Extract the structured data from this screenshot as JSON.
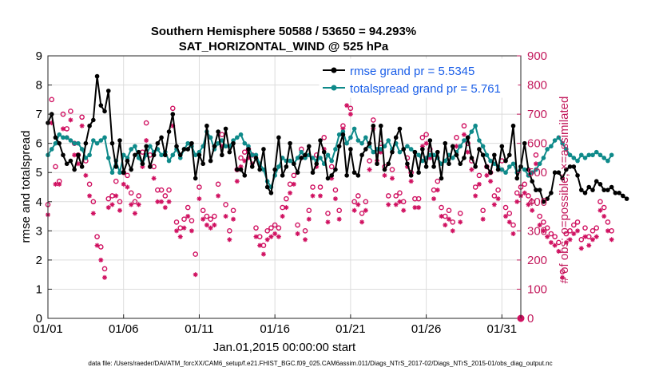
{
  "chart_data": {
    "type": "line",
    "title": "Southern Hemisphere 50588 / 53650 = 94.293%",
    "subtitle": "SAT_HORIZONTAL_WIND @ 525 hPa",
    "xlabel": "Jan.01,2015 00:00:00 start",
    "ylabel": "rmse and totalspread",
    "ylabel_right": "# of obs: o=possible; ×=assimilated",
    "footer": "data file: /Users/raeder/DAI/ATM_forcXX/CAM6_setup/f.e21.FHIST_BGC.f09_025.CAM6assim.011/Diags_NTrS_2017-02/Diags_NTrS_2015-01/obs_diag_output.nc",
    "x_ticks": [
      "01/01",
      "01/06",
      "01/11",
      "01/16",
      "01/21",
      "01/26",
      "01/31"
    ],
    "x_tick_days": [
      0,
      5,
      10,
      15,
      20,
      25,
      30
    ],
    "xlim": [
      0,
      31.25
    ],
    "ylim": [
      0,
      9
    ],
    "ylim_right": [
      0,
      900
    ],
    "y_ticks": [
      0,
      1,
      2,
      3,
      4,
      5,
      6,
      7,
      8,
      9
    ],
    "y_ticks_right": [
      0,
      100,
      200,
      300,
      400,
      500,
      600,
      700,
      800,
      900
    ],
    "grid": true,
    "legend_position": "top-right",
    "series": [
      {
        "name": "rmse grand pr = 5.5345",
        "color": "#000000",
        "axis": "left",
        "x_start": 0,
        "x_step": 0.25,
        "values": [
          6.7,
          7.0,
          6.2,
          6.0,
          5.6,
          5.3,
          5.4,
          5.1,
          5.6,
          5.2,
          6.0,
          6.6,
          6.8,
          8.3,
          7.3,
          7.1,
          7.8,
          6.0,
          5.2,
          6.1,
          5.0,
          5.4,
          5.1,
          5.6,
          5.7,
          5.3,
          5.9,
          5.2,
          5.6,
          6.0,
          6.2,
          5.6,
          6.4,
          7.0,
          5.9,
          5.6,
          5.8,
          5.8,
          6.0,
          4.8,
          5.6,
          5.3,
          6.6,
          5.4,
          5.9,
          6.4,
          5.6,
          6.5,
          5.7,
          6.0,
          5.1,
          5.1,
          4.9,
          5.8,
          5.2,
          5.5,
          5.1,
          5.8,
          4.5,
          4.3,
          5.1,
          6.2,
          4.9,
          5.2,
          6.0,
          5.3,
          5.0,
          5.5,
          5.6,
          5.9,
          5.0,
          5.3,
          6.1,
          5.7,
          4.8,
          4.9,
          5.1,
          5.9,
          6.3,
          4.9,
          5.8,
          5.0,
          4.9,
          5.6,
          5.8,
          6.0,
          6.6,
          5.3,
          6.6,
          5.1,
          5.3,
          5.7,
          6.2,
          6.5,
          5.8,
          5.3,
          4.9,
          5.7,
          5.0,
          5.8,
          5.2,
          6.1,
          5.2,
          5.7,
          4.8,
          6.0,
          5.3,
          5.9,
          5.6,
          5.3,
          5.5,
          6.2,
          5.5,
          5.2,
          5.8,
          5.6,
          5.2,
          5.0,
          5.6,
          5.1,
          5.9,
          5.4,
          5.6,
          6.6,
          4.8,
          5.2,
          6.0,
          5.1,
          4.7,
          4.4,
          4.4,
          4.0,
          4.1,
          4.3,
          5.0,
          5.0,
          4.8,
          5.1,
          5.2,
          5.2,
          4.9,
          4.4,
          4.3,
          4.5,
          4.4,
          4.7,
          4.6,
          4.4,
          4.4,
          4.5,
          4.3,
          4.3,
          4.2,
          4.1
        ]
      },
      {
        "name": "totalspread grand pr = 5.761",
        "color": "#0e8a8a",
        "axis": "left",
        "x_start": 0,
        "x_step": 0.25,
        "values": [
          5.6,
          5.8,
          6.0,
          6.3,
          6.2,
          6.2,
          6.1,
          6.0,
          6.0,
          5.8,
          5.5,
          5.6,
          6.1,
          6.0,
          6.1,
          6.2,
          5.5,
          5.0,
          5.4,
          5.0,
          5.6,
          5.5,
          5.8,
          5.9,
          5.5,
          5.3,
          5.6,
          5.9,
          5.7,
          5.8,
          5.6,
          5.7,
          5.4,
          5.6,
          5.8,
          5.5,
          5.8,
          6.0,
          5.9,
          5.6,
          5.7,
          5.9,
          6.4,
          6.2,
          5.8,
          6.0,
          6.1,
          5.9,
          5.9,
          6.1,
          6.2,
          6.3,
          6.0,
          5.9,
          5.6,
          5.6,
          5.3,
          5.1,
          4.7,
          4.5,
          4.9,
          5.2,
          5.5,
          5.4,
          5.4,
          5.3,
          5.5,
          5.7,
          5.5,
          5.6,
          5.5,
          5.4,
          5.5,
          5.3,
          5.6,
          5.4,
          5.8,
          6.3,
          6.4,
          6.0,
          6.2,
          6.5,
          6.1,
          6.0,
          6.2,
          5.9,
          5.7,
          5.8,
          5.8,
          5.9,
          6.1,
          5.8,
          6.0,
          5.7,
          5.8,
          5.9,
          5.8,
          5.7,
          5.6,
          5.4,
          5.5,
          5.6,
          5.6,
          5.5,
          5.3,
          5.4,
          5.6,
          5.5,
          5.7,
          5.9,
          6.1,
          6.2,
          6.4,
          6.6,
          6.1,
          5.9,
          5.6,
          5.4,
          5.3,
          5.2,
          5.1,
          5.0,
          5.2,
          5.3,
          5.0,
          5.2,
          5.1,
          4.9,
          5.0,
          5.1,
          5.3,
          5.5,
          5.8,
          5.9,
          6.1,
          6.2,
          6.0,
          5.8,
          5.6,
          5.5,
          5.4,
          5.6,
          5.5,
          5.6,
          5.6,
          5.7,
          5.6,
          5.5,
          5.4,
          5.6
        ]
      },
      {
        "name": "possible",
        "color": "#d01060",
        "axis": "right",
        "marker": "circle",
        "x_start": 0,
        "x_step": 0.25,
        "values": [
          390,
          750,
          520,
          470,
          700,
          650,
          710,
          600,
          560,
          690,
          540,
          460,
          400,
          280,
          245,
          170,
          410,
          420,
          470,
          400,
          500,
          490,
          430,
          400,
          420,
          570,
          670,
          560,
          520,
          440,
          440,
          420,
          440,
          720,
          330,
          310,
          340,
          380,
          335,
          220,
          450,
          370,
          350,
          340,
          350,
          460,
          630,
          390,
          300,
          370,
          510,
          550,
          570,
          580,
          560,
          310,
          280,
          250,
          300,
          310,
          320,
          310,
          380,
          410,
          460,
          490,
          320,
          580,
          300,
          370,
          450,
          560,
          450,
          620,
          360,
          520,
          440,
          370,
          660,
          770,
          720,
          400,
          420,
          360,
          400,
          540,
          680,
          570,
          600,
          520,
          420,
          510,
          420,
          430,
          400,
          550,
          500,
          410,
          410,
          620,
          630,
          580,
          440,
          470,
          380,
          350,
          370,
          330,
          620,
          360,
          660,
          600,
          540,
          450,
          490,
          370,
          520,
          500,
          420,
          440,
          540,
          380,
          360,
          320,
          430,
          450,
          460,
          420,
          400,
          560,
          350,
          330,
          310,
          290,
          280,
          260,
          160,
          290,
          300,
          320,
          330,
          270,
          310,
          280,
          300,
          310,
          400,
          380,
          330,
          300
        ]
      },
      {
        "name": "assimilated",
        "color": "#d01060",
        "axis": "right",
        "marker": "asterisk",
        "x_start": 0,
        "x_step": 0.25,
        "values": [
          355,
          670,
          460,
          460,
          650,
          620,
          680,
          560,
          530,
          660,
          490,
          420,
          360,
          250,
          200,
          140,
          380,
          390,
          420,
          370,
          460,
          450,
          390,
          360,
          390,
          520,
          610,
          520,
          480,
          400,
          400,
          380,
          400,
          660,
          300,
          280,
          310,
          350,
          300,
          150,
          410,
          340,
          320,
          310,
          320,
          420,
          590,
          350,
          270,
          340,
          470,
          520,
          540,
          550,
          530,
          280,
          250,
          220,
          270,
          280,
          290,
          280,
          350,
          380,
          430,
          460,
          290,
          550,
          270,
          340,
          420,
          520,
          420,
          580,
          330,
          480,
          410,
          340,
          650,
          730,
          700,
          370,
          390,
          330,
          370,
          510,
          650,
          540,
          570,
          490,
          390,
          480,
          390,
          400,
          370,
          520,
          470,
          380,
          380,
          590,
          600,
          550,
          410,
          440,
          350,
          320,
          340,
          300,
          590,
          330,
          630,
          570,
          510,
          420,
          460,
          340,
          490,
          470,
          390,
          410,
          510,
          350,
          330,
          290,
          400,
          420,
          430,
          390,
          370,
          530,
          320,
          300,
          280,
          260,
          250,
          230,
          140,
          260,
          270,
          290,
          300,
          240,
          280,
          250,
          270,
          280,
          370,
          350,
          300,
          270
        ]
      }
    ],
    "right_axis_zero_point": {
      "day": 31.25,
      "possible": 0,
      "assimilated": 0
    }
  }
}
